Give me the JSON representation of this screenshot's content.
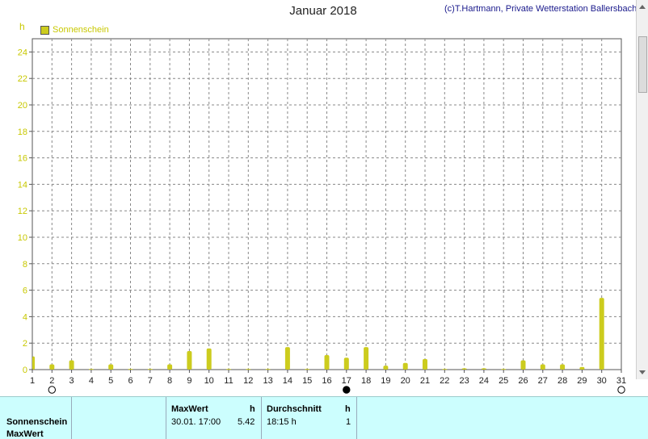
{
  "header": {
    "title": "Januar 2018",
    "credit": "(c)T.Hartmann, Private Wetterstation Ballersbach",
    "unit": "h",
    "legend_label": "Sonnenschein"
  },
  "colors": {
    "bar": "#cccc1e",
    "axis_text": "#c8c800",
    "grid": "#888888",
    "stats_bg": "#ccfefe"
  },
  "moon_phases": [
    {
      "day": 2,
      "phase": "full"
    },
    {
      "day": 17,
      "phase": "new"
    },
    {
      "day": 31,
      "phase": "full"
    }
  ],
  "chart_data": {
    "type": "bar",
    "categories": [
      "1",
      "2",
      "3",
      "4",
      "5",
      "6",
      "7",
      "8",
      "9",
      "10",
      "11",
      "12",
      "13",
      "14",
      "15",
      "16",
      "17",
      "18",
      "19",
      "20",
      "21",
      "22",
      "23",
      "24",
      "25",
      "26",
      "27",
      "28",
      "29",
      "30",
      "31"
    ],
    "values": [
      1.0,
      0.4,
      0.7,
      0.05,
      0.4,
      0.05,
      0.05,
      0.4,
      1.4,
      1.6,
      0.05,
      0.05,
      0.05,
      1.7,
      0.05,
      1.1,
      0.9,
      1.7,
      0.3,
      0.5,
      0.8,
      0.05,
      0.1,
      0.1,
      0.05,
      0.7,
      0.4,
      0.4,
      0.2,
      5.42,
      0
    ],
    "title": "Januar 2018",
    "ylabel": "h",
    "ylim": [
      0,
      25
    ],
    "yticks": [
      0,
      2,
      4,
      6,
      8,
      10,
      12,
      14,
      16,
      18,
      20,
      22,
      24
    ],
    "grid": true,
    "legend": "top-left",
    "series_name": "Sonnenschein"
  },
  "stats": {
    "row_label_1": "Sonnenschein",
    "row_label_2": "MaxWert",
    "max_header": "MaxWert",
    "max_unit": "h",
    "max_when": "30.01.  17:00",
    "max_value": "5.42",
    "avg_header": "Durchschnitt",
    "avg_unit": "h",
    "avg_value": "18:15 h",
    "avg_count": "1"
  }
}
